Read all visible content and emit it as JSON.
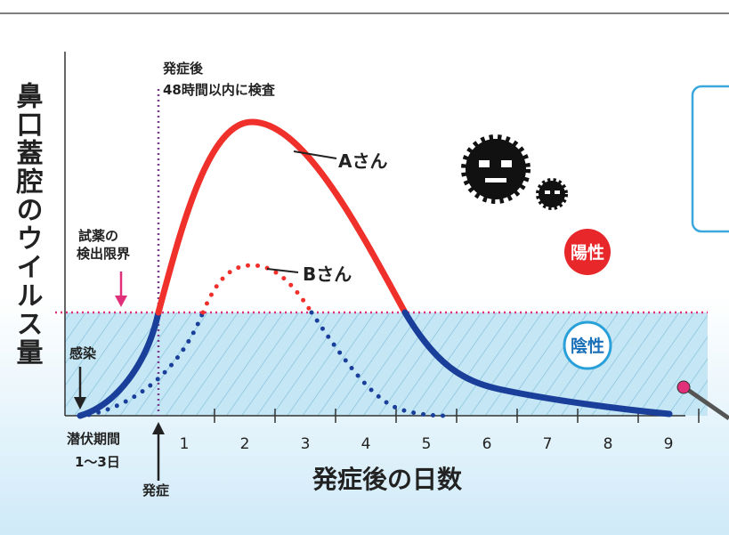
{
  "y_axis_label": "鼻口蓋腔のウイルス量",
  "test_note": [
    "発症後",
    "48時間以内に検査"
  ],
  "curve_labels": {
    "a": "Aさん",
    "b": "Bさん"
  },
  "limit_label": [
    "試薬の",
    "検出限界"
  ],
  "infection_label": "感染",
  "incubation_label": [
    "潜伏期間",
    "1〜3日"
  ],
  "onset_label": "発症",
  "x_axis": {
    "title": "発症後の日数",
    "ticks": [
      1,
      2,
      3,
      4,
      5,
      6,
      7,
      8,
      9
    ]
  },
  "result_labels": {
    "positive": "陽性",
    "negative": "陰性"
  }
}
